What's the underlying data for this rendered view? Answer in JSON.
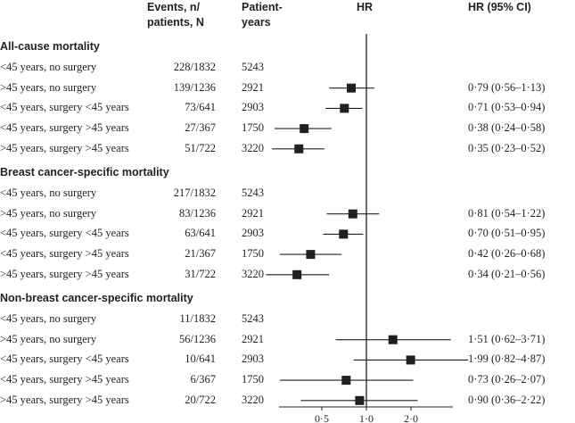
{
  "headers": {
    "events": [
      "Events, n/",
      "patients, N"
    ],
    "patient_years": [
      "Patient-",
      "years"
    ],
    "hr": "HR",
    "hr_ci": "HR (95% CI)"
  },
  "chart_data": {
    "type": "forest",
    "x_scale": "log",
    "xlim": [
      0.25,
      6.5
    ],
    "reference_line": 1.0,
    "x_ticks": [
      {
        "value": 0.5,
        "label": "0·5"
      },
      {
        "value": 1.0,
        "label": "1·0"
      },
      {
        "value": 2.0,
        "label": "2·0"
      }
    ],
    "sections": [
      {
        "title": "All-cause mortality",
        "rows": [
          {
            "label": "<45 years, no surgery",
            "events": "228/1832",
            "patient_years": "5243",
            "hr": null,
            "lo": null,
            "hi": null,
            "hr_text": ""
          },
          {
            "label": ">45 years, no surgery",
            "events": "139/1236",
            "patient_years": "2921",
            "hr": 0.79,
            "lo": 0.56,
            "hi": 1.13,
            "hr_text": "0·79 (0·56–1·13)"
          },
          {
            "label": "<45 years, surgery <45 years",
            "events": "73/641",
            "patient_years": "2903",
            "hr": 0.71,
            "lo": 0.53,
            "hi": 0.94,
            "hr_text": "0·71 (0·53–0·94)"
          },
          {
            "label": "<45 years, surgery >45 years",
            "events": "27/367",
            "patient_years": "1750",
            "hr": 0.38,
            "lo": 0.24,
            "hi": 0.58,
            "hr_text": "0·38 (0·24–0·58)"
          },
          {
            "label": ">45 years, surgery >45 years",
            "events": "51/722",
            "patient_years": "3220",
            "hr": 0.35,
            "lo": 0.23,
            "hi": 0.52,
            "hr_text": "0·35 (0·23–0·52)"
          }
        ]
      },
      {
        "title": "Breast cancer-specific mortality",
        "rows": [
          {
            "label": "<45 years, no surgery",
            "events": "217/1832",
            "patient_years": "5243",
            "hr": null,
            "lo": null,
            "hi": null,
            "hr_text": ""
          },
          {
            "label": ">45 years, no surgery",
            "events": "83/1236",
            "patient_years": "2921",
            "hr": 0.81,
            "lo": 0.54,
            "hi": 1.22,
            "hr_text": "0·81 (0·54–1·22)"
          },
          {
            "label": "<45 years, surgery <45 years",
            "events": "63/641",
            "patient_years": "2903",
            "hr": 0.7,
            "lo": 0.51,
            "hi": 0.95,
            "hr_text": "0·70 (0·51–0·95)"
          },
          {
            "label": "<45 years, surgery >45 years",
            "events": "21/367",
            "patient_years": "1750",
            "hr": 0.42,
            "lo": 0.26,
            "hi": 0.68,
            "hr_text": "0·42 (0·26–0·68)"
          },
          {
            "label": ">45 years, surgery >45 years",
            "events": "31/722",
            "patient_years": "3220",
            "hr": 0.34,
            "lo": 0.21,
            "hi": 0.56,
            "hr_text": "0·34 (0·21–0·56)"
          }
        ]
      },
      {
        "title": "Non-breast cancer-specific mortality",
        "rows": [
          {
            "label": "<45 years, no surgery",
            "events": "11/1832",
            "patient_years": "5243",
            "hr": null,
            "lo": null,
            "hi": null,
            "hr_text": ""
          },
          {
            "label": ">45 years, no surgery",
            "events": "56/1236",
            "patient_years": "2921",
            "hr": 1.51,
            "lo": 0.62,
            "hi": 3.71,
            "hr_text": "1·51 (0·62–3·71)"
          },
          {
            "label": "<45 years, surgery <45 years",
            "events": "10/641",
            "patient_years": "2903",
            "hr": 1.99,
            "lo": 0.82,
            "hi": 4.87,
            "hr_text": "1·99 (0·82–4·87)"
          },
          {
            "label": "<45 years, surgery >45 years",
            "events": "6/367",
            "patient_years": "1750",
            "hr": 0.73,
            "lo": 0.26,
            "hi": 2.07,
            "hr_text": "0·73 (0·26–2·07)"
          },
          {
            "label": ">45 years, surgery >45 years",
            "events": "20/722",
            "patient_years": "3220",
            "hr": 0.9,
            "lo": 0.36,
            "hi": 2.22,
            "hr_text": "0·90 (0·36–2·22)"
          }
        ]
      }
    ]
  }
}
